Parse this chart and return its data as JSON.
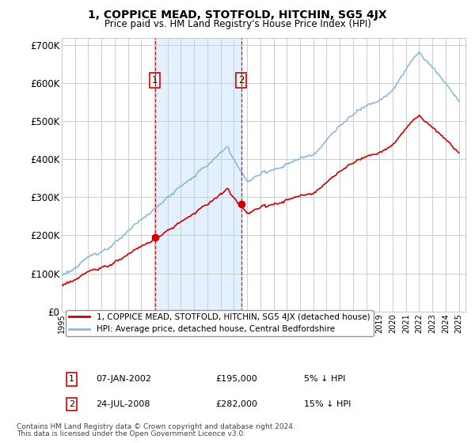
{
  "title": "1, COPPICE MEAD, STOTFOLD, HITCHIN, SG5 4JX",
  "subtitle": "Price paid vs. HM Land Registry's House Price Index (HPI)",
  "ylim": [
    0,
    720000
  ],
  "yticks": [
    0,
    100000,
    200000,
    300000,
    400000,
    500000,
    600000,
    700000
  ],
  "ytick_labels": [
    "£0",
    "£100K",
    "£200K",
    "£300K",
    "£400K",
    "£500K",
    "£600K",
    "£700K"
  ],
  "sale1_year": 2002.03,
  "sale1_price": 195000,
  "sale1_label": "1",
  "sale1_date": "07-JAN-2002",
  "sale1_hpi_diff": "5% ↓ HPI",
  "sale2_year": 2008.56,
  "sale2_price": 282000,
  "sale2_label": "2",
  "sale2_date": "24-JUL-2008",
  "sale2_hpi_diff": "15% ↓ HPI",
  "line_color_property": "#cc0000",
  "line_color_hpi": "#88bbdd",
  "shade_color": "#ddeeff",
  "legend_label_property": "1, COPPICE MEAD, STOTFOLD, HITCHIN, SG5 4JX (detached house)",
  "legend_label_hpi": "HPI: Average price, detached house, Central Bedfordshire",
  "footer1": "Contains HM Land Registry data © Crown copyright and database right 2024.",
  "footer2": "This data is licensed under the Open Government Licence v3.0.",
  "background_color": "#ffffff",
  "grid_color": "#cccccc"
}
